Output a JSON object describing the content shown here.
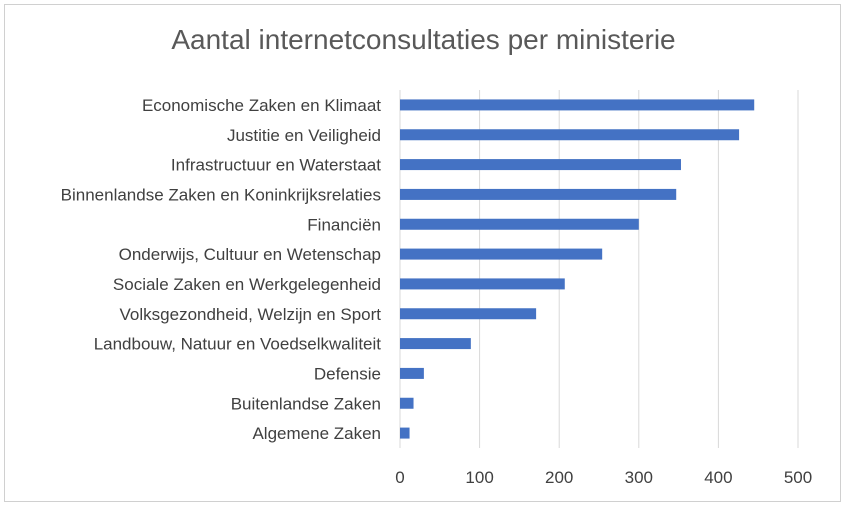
{
  "chart_data": {
    "type": "bar",
    "orientation": "horizontal",
    "title": "Aantal internetconsultaties per ministerie",
    "xlabel": "",
    "ylabel": "",
    "categories": [
      "Economische Zaken en Klimaat",
      "Justitie en Veiligheid",
      "Infrastructuur en Waterstaat",
      "Binnenlandse Zaken en Koninkrijksrelaties",
      "Financiën",
      "Onderwijs, Cultuur en Wetenschap",
      "Sociale Zaken en Werkgelegenheid",
      "Volksgezondheid, Welzijn en Sport",
      "Landbouw, Natuur en Voedselkwaliteit",
      "Defensie",
      "Buitenlandse Zaken",
      "Algemene Zaken"
    ],
    "values": [
      445,
      426,
      353,
      347,
      300,
      254,
      207,
      171,
      89,
      30,
      17,
      12
    ],
    "xlim": [
      0,
      500
    ],
    "xticks": [
      0,
      100,
      200,
      300,
      400,
      500
    ],
    "grid": "vertical",
    "legend": "none",
    "colors": {
      "bar": "#4472C4",
      "grid": "#d9d9d9"
    }
  }
}
